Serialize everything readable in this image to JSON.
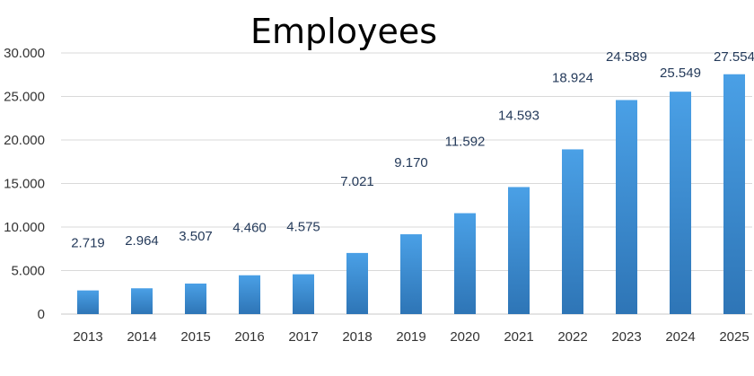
{
  "chart_data": {
    "type": "bar",
    "title": "Employees",
    "xlabel": "",
    "ylabel": "",
    "categories": [
      "2013",
      "2014",
      "2015",
      "2016",
      "2017",
      "2018",
      "2019",
      "2020",
      "2021",
      "2022",
      "2023",
      "2024",
      "2025"
    ],
    "values": [
      2719,
      2964,
      3507,
      4460,
      4575,
      7021,
      9170,
      11592,
      14593,
      18924,
      24589,
      25549,
      27554
    ],
    "data_labels": [
      "2.719",
      "2.964",
      "3.507",
      "4.460",
      "4.575",
      "7.021",
      "9.170",
      "11.592",
      "14.593",
      "18.924",
      "24.589",
      "25.549",
      "27.554"
    ],
    "ylim": [
      0,
      30000
    ],
    "y_ticks": [
      0,
      5000,
      10000,
      15000,
      20000,
      25000,
      30000
    ],
    "y_tick_labels": [
      "0",
      "5.000",
      "10.000",
      "15.000",
      "20.000",
      "25.000",
      "30.000"
    ],
    "grid": true,
    "legend": "none",
    "bar_color_top": "#4aa0e6",
    "bar_color_bottom": "#2e75b6"
  }
}
